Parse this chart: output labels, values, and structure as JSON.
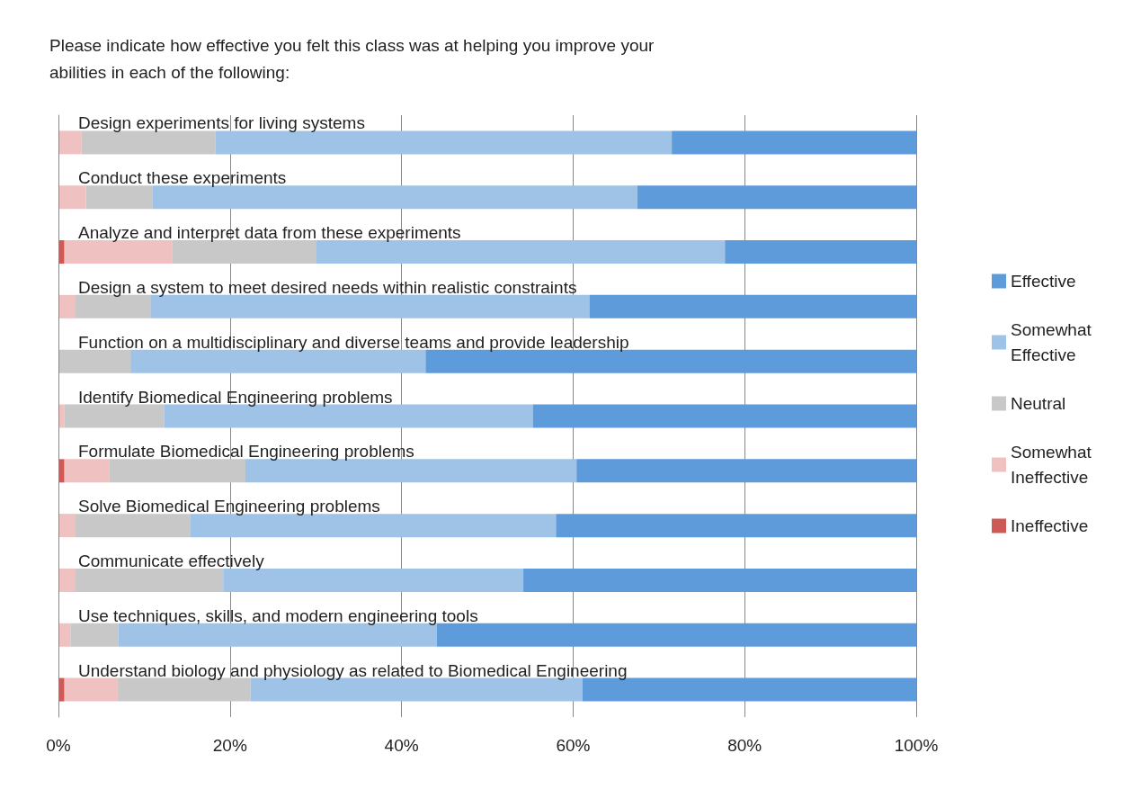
{
  "chart_data": {
    "type": "bar",
    "orientation": "horizontal",
    "stacked": true,
    "title": "Please indicate how effective you felt this class was at helping you improve your abilities in each of the following:",
    "categories": [
      "Design experiments for living systems",
      "Conduct these experiments",
      "Analyze and interpret data from these experiments",
      "Design a system to meet desired needs within realistic constraints",
      "Function on a multidisciplinary and diverse teams and provide leadership",
      "Identify Biomedical Engineering problems",
      "Formulate Biomedical Engineering problems",
      "Solve Biomedical Engineering problems",
      "Communicate effectively",
      "Use techniques, skills, and modern engineering tools",
      "Understand biology and physiology as related to Biomedical Engineering"
    ],
    "series": [
      {
        "name": "Ineffective",
        "color": "#cc5b58",
        "values": [
          0,
          0,
          0.7,
          0,
          0,
          0,
          0.7,
          0,
          0,
          0,
          0.7
        ]
      },
      {
        "name": "Somewhat Ineffective",
        "color": "#efc1c0",
        "values": [
          2.7,
          3.2,
          12.6,
          1.9,
          0,
          0.7,
          5.2,
          1.9,
          1.9,
          1.4,
          6.2
        ]
      },
      {
        "name": "Neutral",
        "color": "#c8c8c8",
        "values": [
          15.6,
          7.8,
          16.7,
          8.9,
          8.4,
          11.6,
          15.9,
          13.5,
          17.3,
          5.6,
          15.5
        ]
      },
      {
        "name": "Somewhat Effective",
        "color": "#9fc2e7",
        "values": [
          53.2,
          56.5,
          47.7,
          51.1,
          34.4,
          43.0,
          38.6,
          42.6,
          35.0,
          37.1,
          38.7
        ]
      },
      {
        "name": "Effective",
        "color": "#5e9bdb",
        "values": [
          28.5,
          32.5,
          22.3,
          38.1,
          57.2,
          44.7,
          39.6,
          42.0,
          45.8,
          55.9,
          38.9
        ]
      }
    ],
    "xlim": [
      0,
      100
    ],
    "xticks": [
      {
        "value": 0,
        "label": "0%"
      },
      {
        "value": 20,
        "label": "20%"
      },
      {
        "value": 40,
        "label": "40%"
      },
      {
        "value": 60,
        "label": "60%"
      },
      {
        "value": 80,
        "label": "80%"
      },
      {
        "value": 100,
        "label": "100%"
      }
    ],
    "grid": "x",
    "legend": "right"
  }
}
